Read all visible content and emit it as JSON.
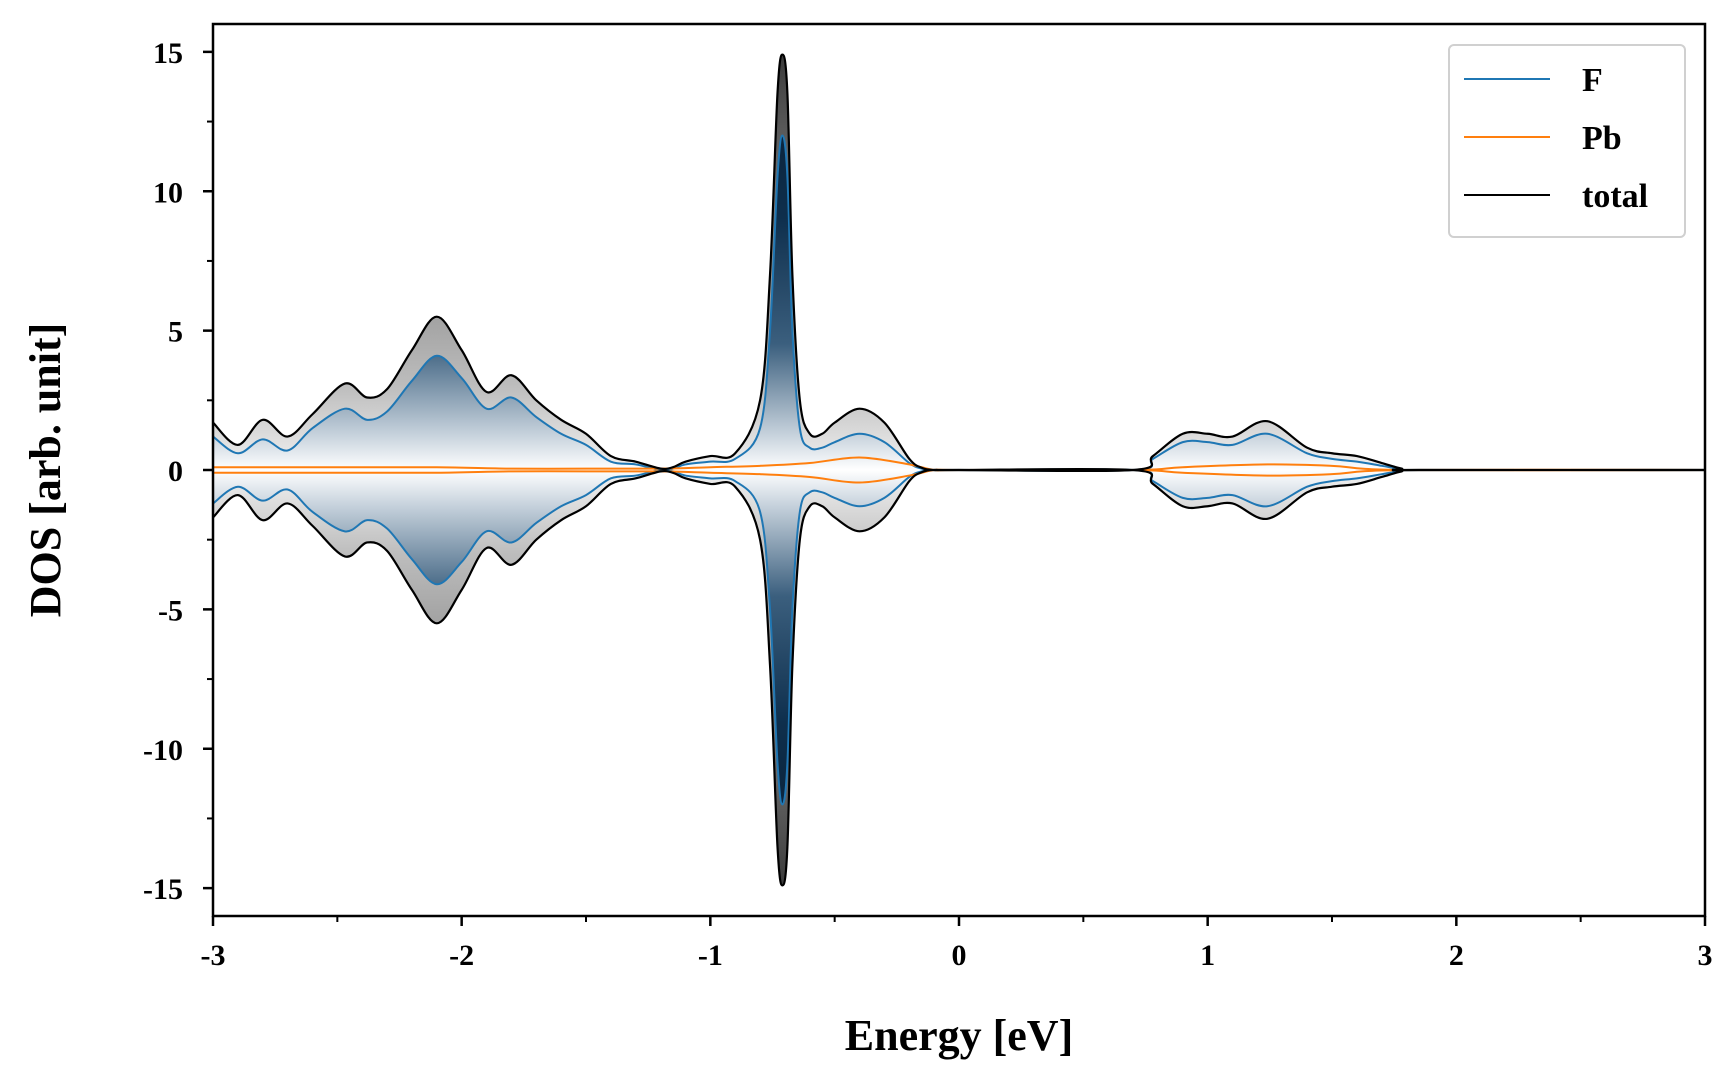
{
  "chart_data": {
    "type": "area",
    "xlabel": "Energy [eV]",
    "ylabel": "DOS [arb. unit]",
    "xlim": [
      -3,
      3
    ],
    "ylim": [
      -16,
      16
    ],
    "x_ticks": [
      -3,
      -2,
      -1,
      0,
      1,
      2,
      3
    ],
    "x_tick_labels": [
      "-3",
      "-2",
      "-1",
      "0",
      "1",
      "2",
      "3"
    ],
    "y_ticks": [
      15,
      10,
      5,
      0,
      -5,
      -10,
      -15
    ],
    "y_tick_labels": [
      "15",
      "10",
      "5",
      "0",
      "-5",
      "-10",
      "-15"
    ],
    "mirrored": true,
    "legend_position": "top-right",
    "grid": false,
    "fill": "vertical gradient from light gray-blue near 0 to dark navy at the peak; gray fill between F and total",
    "series": [
      {
        "name": "F",
        "color": "#1f77b4",
        "x": [
          -3.0,
          -2.9,
          -2.8,
          -2.7,
          -2.6,
          -2.47,
          -2.38,
          -2.3,
          -2.2,
          -2.1,
          -2.0,
          -1.9,
          -1.8,
          -1.7,
          -1.6,
          -1.5,
          -1.4,
          -1.3,
          -1.2,
          -1.15,
          -1.1,
          -1.0,
          -0.9,
          -0.8,
          -0.76,
          -0.73,
          -0.71,
          -0.69,
          -0.67,
          -0.64,
          -0.6,
          -0.55,
          -0.5,
          -0.4,
          -0.3,
          -0.2,
          -0.15,
          -0.1,
          0.0,
          0.7,
          0.78,
          0.9,
          1.0,
          1.1,
          1.24,
          1.4,
          1.5,
          1.6,
          1.7,
          1.78,
          1.85,
          3.0
        ],
        "values": [
          1.2,
          0.6,
          1.1,
          0.7,
          1.5,
          2.2,
          1.8,
          2.1,
          3.2,
          4.1,
          3.3,
          2.2,
          2.6,
          1.9,
          1.3,
          0.9,
          0.3,
          0.2,
          0.0,
          0.05,
          0.2,
          0.3,
          0.4,
          1.5,
          5.0,
          10.5,
          12.0,
          10.5,
          5.0,
          1.5,
          0.8,
          0.8,
          1.0,
          1.3,
          1.0,
          0.25,
          0.05,
          0.0,
          0.0,
          0.0,
          0.4,
          1.0,
          1.0,
          0.9,
          1.3,
          0.6,
          0.4,
          0.3,
          0.15,
          0.03,
          0.0,
          0.0
        ]
      },
      {
        "name": "Pb",
        "color": "#ff7f0e",
        "x": [
          -3.0,
          -2.5,
          -2.1,
          -1.8,
          -1.5,
          -1.2,
          -1.0,
          -0.8,
          -0.6,
          -0.4,
          -0.2,
          -0.1,
          0.0,
          0.7,
          0.9,
          1.24,
          1.5,
          1.8,
          3.0
        ],
        "values": [
          0.1,
          0.1,
          0.1,
          0.05,
          0.05,
          0.05,
          0.1,
          0.15,
          0.25,
          0.45,
          0.2,
          0.0,
          0.0,
          0.0,
          0.1,
          0.2,
          0.15,
          0.0,
          0.0
        ]
      },
      {
        "name": "total",
        "color": "#000000",
        "x": [
          -3.0,
          -2.9,
          -2.8,
          -2.7,
          -2.6,
          -2.47,
          -2.38,
          -2.3,
          -2.2,
          -2.1,
          -2.0,
          -1.9,
          -1.8,
          -1.7,
          -1.6,
          -1.5,
          -1.4,
          -1.3,
          -1.2,
          -1.15,
          -1.1,
          -1.0,
          -0.9,
          -0.8,
          -0.76,
          -0.73,
          -0.71,
          -0.69,
          -0.67,
          -0.64,
          -0.6,
          -0.55,
          -0.5,
          -0.4,
          -0.3,
          -0.2,
          -0.15,
          -0.1,
          0.0,
          0.7,
          0.78,
          0.9,
          1.0,
          1.1,
          1.24,
          1.4,
          1.5,
          1.6,
          1.7,
          1.78,
          1.85,
          3.0
        ],
        "values": [
          1.7,
          0.9,
          1.8,
          1.2,
          2.0,
          3.1,
          2.6,
          2.9,
          4.3,
          5.5,
          4.3,
          2.8,
          3.4,
          2.5,
          1.8,
          1.3,
          0.5,
          0.3,
          0.05,
          0.1,
          0.3,
          0.5,
          0.6,
          2.5,
          7.0,
          13.5,
          14.9,
          13.5,
          7.0,
          2.5,
          1.3,
          1.3,
          1.7,
          2.2,
          1.7,
          0.4,
          0.08,
          0.0,
          0.0,
          0.0,
          0.5,
          1.3,
          1.3,
          1.2,
          1.75,
          0.8,
          0.6,
          0.5,
          0.25,
          0.05,
          0.0,
          0.0
        ]
      }
    ]
  }
}
